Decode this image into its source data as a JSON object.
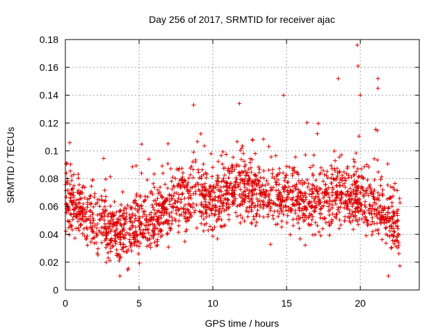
{
  "chart_data": {
    "type": "scatter",
    "title": "Day 256 of 2017, SRMTID for receiver ajac",
    "xlabel": "GPS time / hours",
    "ylabel": "SRMTID / TECUs",
    "xlim": [
      0,
      24
    ],
    "ylim": [
      0,
      0.18
    ],
    "x_ticks": [
      0,
      5,
      10,
      15,
      20
    ],
    "x_tick_labels": [
      "0",
      "5",
      "10",
      "15",
      "20"
    ],
    "y_ticks": [
      0,
      0.02,
      0.04,
      0.06,
      0.08,
      0.1,
      0.12,
      0.14,
      0.16,
      0.18
    ],
    "y_tick_labels": [
      "0",
      "0.02",
      "0.04",
      "0.06",
      "0.08",
      "0.1",
      "0.12",
      "0.14",
      "0.16",
      "0.18"
    ],
    "grid": true,
    "marker": "+",
    "color": "#dd0000",
    "x_range_of_data": [
      0,
      22.7
    ],
    "samples_per_hour": 90,
    "approx_baseline": [
      {
        "x": 0,
        "y": 0.065
      },
      {
        "x": 1,
        "y": 0.058
      },
      {
        "x": 2,
        "y": 0.05
      },
      {
        "x": 3,
        "y": 0.042
      },
      {
        "x": 4,
        "y": 0.043
      },
      {
        "x": 5,
        "y": 0.047
      },
      {
        "x": 6,
        "y": 0.052
      },
      {
        "x": 7,
        "y": 0.058
      },
      {
        "x": 8,
        "y": 0.066
      },
      {
        "x": 9,
        "y": 0.07
      },
      {
        "x": 10,
        "y": 0.062
      },
      {
        "x": 11,
        "y": 0.07
      },
      {
        "x": 12,
        "y": 0.074
      },
      {
        "x": 13,
        "y": 0.068
      },
      {
        "x": 14,
        "y": 0.066
      },
      {
        "x": 15,
        "y": 0.07
      },
      {
        "x": 16,
        "y": 0.06
      },
      {
        "x": 17,
        "y": 0.064
      },
      {
        "x": 18,
        "y": 0.068
      },
      {
        "x": 19,
        "y": 0.064
      },
      {
        "x": 20,
        "y": 0.068
      },
      {
        "x": 21,
        "y": 0.06
      },
      {
        "x": 22,
        "y": 0.05
      },
      {
        "x": 22.7,
        "y": 0.045
      }
    ],
    "highlighted_points": [
      {
        "x": 3.7,
        "y": 0.01
      },
      {
        "x": 8.7,
        "y": 0.133
      },
      {
        "x": 11.8,
        "y": 0.134
      },
      {
        "x": 14.8,
        "y": 0.14
      },
      {
        "x": 18.5,
        "y": 0.152
      },
      {
        "x": 19.8,
        "y": 0.176
      },
      {
        "x": 19.85,
        "y": 0.161
      },
      {
        "x": 20.0,
        "y": 0.14
      },
      {
        "x": 21.2,
        "y": 0.152
      },
      {
        "x": 21.2,
        "y": 0.145
      },
      {
        "x": 21.9,
        "y": 0.01
      }
    ]
  }
}
